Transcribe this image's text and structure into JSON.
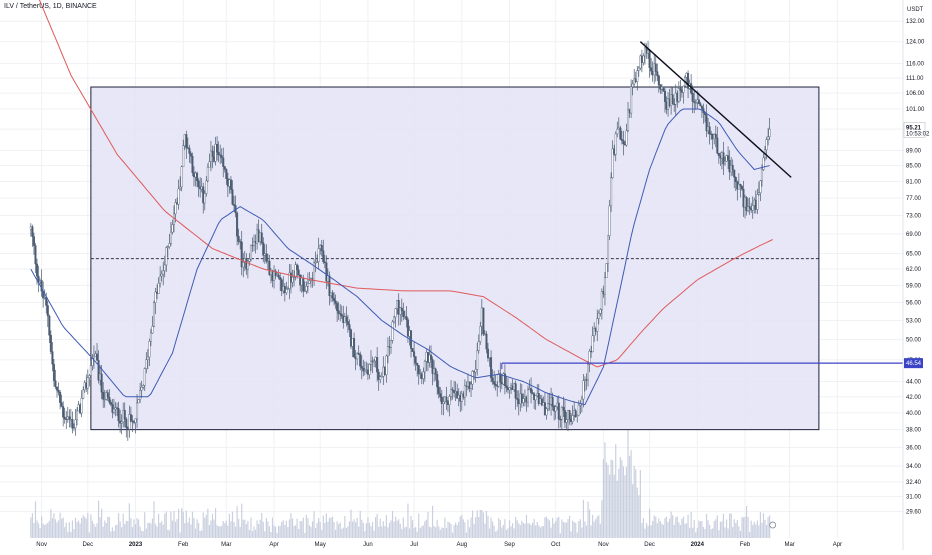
{
  "header": {
    "symbol": "ILV / TetherUS",
    "interval": "1D",
    "exchange": "BINANCE",
    "separator": ", "
  },
  "price_scale": {
    "unit": "USDT"
  },
  "colors": {
    "candle": "#4a5a70",
    "ma_short": "#3f5bb5",
    "ma_long": "#e05a5a",
    "range_fill": "#e3e3f6",
    "range_border": "#1e2238",
    "trendline": "#0d0f1c",
    "support_line": "#3b44c7",
    "volume": "#b8c0d4",
    "grid": "#f0f1f4"
  },
  "chart_data": {
    "type": "candlestick",
    "title": "ILV / TetherUS, 1D, BINANCE",
    "y_scale": "log",
    "ylim": [
      28.5,
      137
    ],
    "y_ticks": [
      "29.60",
      "31.00",
      "32.40",
      "34.00",
      "36.00",
      "38.00",
      "40.00",
      "42.00",
      "44.00",
      "47.00",
      "50.00",
      "53.00",
      "56.00",
      "59.00",
      "62.00",
      "65.00",
      "69.00",
      "73.00",
      "77.00",
      "81.00",
      "85.00",
      "89.00",
      "95.00",
      "101.00",
      "106.00",
      "111.00",
      "116.00",
      "124.00",
      "132.00"
    ],
    "x_ticks": [
      "Nov",
      "Dec",
      "2023",
      "Feb",
      "Mar",
      "Apr",
      "May",
      "Jun",
      "Jul",
      "Aug",
      "Sep",
      "Oct",
      "Nov",
      "Dec",
      "2024",
      "Feb",
      "Mar",
      "Apr"
    ],
    "price_path": [
      [
        "2022-10-25",
        70
      ],
      [
        "2022-10-30",
        60
      ],
      [
        "2022-11-05",
        54
      ],
      [
        "2022-11-09",
        44
      ],
      [
        "2022-11-15",
        40
      ],
      [
        "2022-11-22",
        38.5
      ],
      [
        "2022-11-28",
        42
      ],
      [
        "2022-12-05",
        48
      ],
      [
        "2022-12-10",
        43
      ],
      [
        "2022-12-16",
        40.5
      ],
      [
        "2022-12-23",
        39.5
      ],
      [
        "2022-12-31",
        38.5
      ],
      [
        "2023-01-07",
        45
      ],
      [
        "2023-01-14",
        57
      ],
      [
        "2023-01-20",
        63
      ],
      [
        "2023-01-25",
        72
      ],
      [
        "2023-01-29",
        78
      ],
      [
        "2023-02-02",
        93
      ],
      [
        "2023-02-06",
        87
      ],
      [
        "2023-02-10",
        80
      ],
      [
        "2023-02-14",
        77
      ],
      [
        "2023-02-18",
        86
      ],
      [
        "2023-02-22",
        89
      ],
      [
        "2023-02-27",
        84
      ],
      [
        "2023-03-03",
        80
      ],
      [
        "2023-03-08",
        70
      ],
      [
        "2023-03-12",
        62
      ],
      [
        "2023-03-17",
        66
      ],
      [
        "2023-03-22",
        69
      ],
      [
        "2023-03-28",
        63
      ],
      [
        "2023-04-02",
        60
      ],
      [
        "2023-04-08",
        58
      ],
      [
        "2023-04-14",
        62
      ],
      [
        "2023-04-18",
        60
      ],
      [
        "2023-04-23",
        58
      ],
      [
        "2023-04-28",
        63
      ],
      [
        "2023-05-02",
        66
      ],
      [
        "2023-05-07",
        58
      ],
      [
        "2023-05-12",
        55
      ],
      [
        "2023-05-18",
        52
      ],
      [
        "2023-05-24",
        48
      ],
      [
        "2023-05-30",
        45.5
      ],
      [
        "2023-06-05",
        47
      ],
      [
        "2023-06-10",
        44
      ],
      [
        "2023-06-15",
        49
      ],
      [
        "2023-06-20",
        56
      ],
      [
        "2023-06-25",
        53
      ],
      [
        "2023-06-30",
        49
      ],
      [
        "2023-07-05",
        45
      ],
      [
        "2023-07-10",
        47.5
      ],
      [
        "2023-07-15",
        44
      ],
      [
        "2023-07-20",
        41
      ],
      [
        "2023-07-25",
        42.5
      ],
      [
        "2023-07-31",
        41.5
      ],
      [
        "2023-08-05",
        43
      ],
      [
        "2023-08-10",
        46
      ],
      [
        "2023-08-14",
        54
      ],
      [
        "2023-08-18",
        47
      ],
      [
        "2023-08-22",
        44
      ],
      [
        "2023-08-28",
        44.5
      ],
      [
        "2023-09-03",
        43
      ],
      [
        "2023-09-10",
        41.5
      ],
      [
        "2023-09-16",
        42.5
      ],
      [
        "2023-09-22",
        40.5
      ],
      [
        "2023-09-28",
        41
      ],
      [
        "2023-10-04",
        40
      ],
      [
        "2023-10-10",
        39.5
      ],
      [
        "2023-10-15",
        40
      ],
      [
        "2023-10-20",
        44
      ],
      [
        "2023-10-25",
        50
      ],
      [
        "2023-10-30",
        55
      ],
      [
        "2023-11-03",
        63
      ],
      [
        "2023-11-07",
        88
      ],
      [
        "2023-11-11",
        95
      ],
      [
        "2023-11-15",
        92
      ],
      [
        "2023-11-19",
        106
      ],
      [
        "2023-11-23",
        112
      ],
      [
        "2023-11-27",
        121
      ],
      [
        "2023-12-01",
        117
      ],
      [
        "2023-12-05",
        112
      ],
      [
        "2023-12-09",
        108
      ],
      [
        "2023-12-13",
        102
      ],
      [
        "2023-12-17",
        104
      ],
      [
        "2023-12-21",
        108
      ],
      [
        "2023-12-25",
        110
      ],
      [
        "2023-12-29",
        104
      ],
      [
        "2024-01-03",
        100
      ],
      [
        "2024-01-08",
        95
      ],
      [
        "2024-01-12",
        92
      ],
      [
        "2024-01-17",
        88
      ],
      [
        "2024-01-22",
        84
      ],
      [
        "2024-01-27",
        80
      ],
      [
        "2024-02-01",
        76
      ],
      [
        "2024-02-05",
        74
      ],
      [
        "2024-02-09",
        76
      ],
      [
        "2024-02-13",
        85
      ],
      [
        "2024-02-17",
        95
      ]
    ],
    "ma_short_path": [
      [
        "2022-10-25",
        62
      ],
      [
        "2022-11-15",
        52
      ],
      [
        "2022-12-05",
        47
      ],
      [
        "2022-12-25",
        42
      ],
      [
        "2023-01-10",
        42
      ],
      [
        "2023-01-25",
        48
      ],
      [
        "2023-02-10",
        62
      ],
      [
        "2023-02-25",
        72
      ],
      [
        "2023-03-10",
        75
      ],
      [
        "2023-03-25",
        72
      ],
      [
        "2023-04-10",
        66
      ],
      [
        "2023-04-25",
        63
      ],
      [
        "2023-05-10",
        60
      ],
      [
        "2023-05-25",
        57
      ],
      [
        "2023-06-10",
        53
      ],
      [
        "2023-06-25",
        50.5
      ],
      [
        "2023-07-10",
        48.5
      ],
      [
        "2023-07-25",
        46
      ],
      [
        "2023-08-10",
        44.5
      ],
      [
        "2023-08-25",
        45
      ],
      [
        "2023-09-10",
        44
      ],
      [
        "2023-09-25",
        42.5
      ],
      [
        "2023-10-10",
        41.5
      ],
      [
        "2023-10-20",
        41
      ],
      [
        "2023-11-01",
        46
      ],
      [
        "2023-11-10",
        56
      ],
      [
        "2023-11-20",
        70
      ],
      [
        "2023-12-01",
        84
      ],
      [
        "2023-12-12",
        96
      ],
      [
        "2023-12-22",
        101
      ],
      [
        "2024-01-03",
        101
      ],
      [
        "2024-01-15",
        97
      ],
      [
        "2024-01-27",
        89
      ],
      [
        "2024-02-07",
        84
      ],
      [
        "2024-02-17",
        85
      ]
    ],
    "ma_long_path": [
      [
        "2022-10-25",
        150
      ],
      [
        "2022-11-20",
        112
      ],
      [
        "2022-12-20",
        88
      ],
      [
        "2023-01-20",
        74
      ],
      [
        "2023-02-20",
        66
      ],
      [
        "2023-03-25",
        62
      ],
      [
        "2023-04-25",
        60
      ],
      [
        "2023-05-25",
        58.5
      ],
      [
        "2023-06-25",
        58
      ],
      [
        "2023-07-25",
        58
      ],
      [
        "2023-08-15",
        57
      ],
      [
        "2023-09-05",
        53.5
      ],
      [
        "2023-09-25",
        50
      ],
      [
        "2023-10-15",
        47.5
      ],
      [
        "2023-10-28",
        46
      ],
      [
        "2023-11-10",
        47
      ],
      [
        "2023-11-25",
        51
      ],
      [
        "2023-12-10",
        55
      ],
      [
        "2024-01-01",
        60
      ],
      [
        "2024-01-25",
        64
      ],
      [
        "2024-02-10",
        66.5
      ],
      [
        "2024-02-20",
        68
      ]
    ],
    "range_box": {
      "top": 108,
      "bottom": 38,
      "mid": 64,
      "start": "2022-12-03",
      "end": "2024-03-20"
    },
    "trendline": {
      "start": [
        "2023-11-25",
        124
      ],
      "end": [
        "2024-03-02",
        82
      ]
    },
    "support_line": {
      "start": [
        "2023-08-27",
        46.54
      ],
      "end": [
        "2024-04-30",
        46.54
      ]
    },
    "last_price": "95.21",
    "last_price_sub": "10:53:02",
    "support_label": "46.54"
  }
}
